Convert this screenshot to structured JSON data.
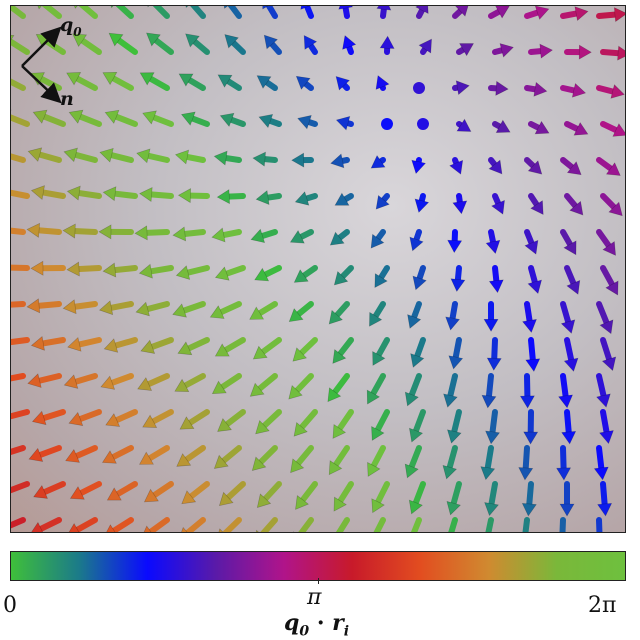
{
  "axes_inset": {
    "q_axis_label": "q",
    "q_axis_subscript": "0",
    "n_axis_label": "n"
  },
  "colorbar": {
    "tick_min": "0",
    "tick_mid": "π",
    "tick_max": "2π",
    "title_vector_a": "q",
    "title_vector_a_subscript": "0",
    "title_operator": "·",
    "title_vector_b": "r",
    "title_vector_b_subscript": "i",
    "range": [
      0,
      6.283
    ],
    "gradient_stops": [
      "#3fbf3a",
      "#1b7a8a",
      "#0a0aff",
      "#5a1aa8",
      "#b0148a",
      "#c81a2a",
      "#e24d20",
      "#d08a30",
      "#7ab83a",
      "#6ec03e"
    ]
  },
  "colors": {
    "background_light": "#d9d6da",
    "background_dark": "#b59a95",
    "arrow_shaft_shade": "0.75"
  }
}
